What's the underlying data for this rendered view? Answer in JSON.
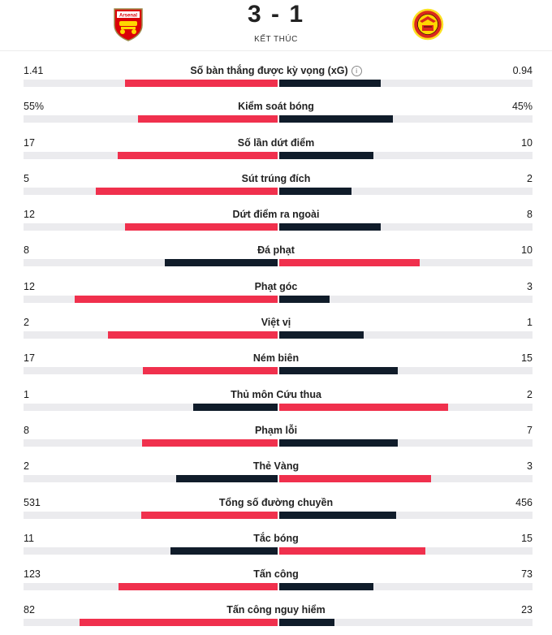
{
  "colors": {
    "winner": "#f0304d",
    "other": "#101c2a",
    "track": "#ebebee"
  },
  "match": {
    "score": "3 - 1",
    "status": "KẾT THÚC",
    "home_crest_icon": "arsenal-crest-icon",
    "away_crest_icon": "manchester-united-crest-icon"
  },
  "stats": [
    {
      "label": "Số bàn thắng được kỳ vọng (xG)",
      "home": "1.41",
      "away": "0.94",
      "home_value": 1.41,
      "away_value": 0.94,
      "info": true
    },
    {
      "label": "Kiểm soát bóng",
      "home": "55%",
      "away": "45%",
      "home_value": 55,
      "away_value": 45
    },
    {
      "label": "Số lần dứt điểm",
      "home": "17",
      "away": "10",
      "home_value": 17,
      "away_value": 10
    },
    {
      "label": "Sút trúng đích",
      "home": "5",
      "away": "2",
      "home_value": 5,
      "away_value": 2
    },
    {
      "label": "Dứt điểm ra ngoài",
      "home": "12",
      "away": "8",
      "home_value": 12,
      "away_value": 8
    },
    {
      "label": "Đá phạt",
      "home": "8",
      "away": "10",
      "home_value": 8,
      "away_value": 10
    },
    {
      "label": "Phạt góc",
      "home": "12",
      "away": "3",
      "home_value": 12,
      "away_value": 3
    },
    {
      "label": "Việt vị",
      "home": "2",
      "away": "1",
      "home_value": 2,
      "away_value": 1
    },
    {
      "label": "Ném biên",
      "home": "17",
      "away": "15",
      "home_value": 17,
      "away_value": 15
    },
    {
      "label": "Thủ môn Cứu thua",
      "home": "1",
      "away": "2",
      "home_value": 1,
      "away_value": 2
    },
    {
      "label": "Phạm lỗi",
      "home": "8",
      "away": "7",
      "home_value": 8,
      "away_value": 7
    },
    {
      "label": "Thẻ Vàng",
      "home": "2",
      "away": "3",
      "home_value": 2,
      "away_value": 3
    },
    {
      "label": "Tổng số đường chuyền",
      "home": "531",
      "away": "456",
      "home_value": 531,
      "away_value": 456
    },
    {
      "label": "Tắc bóng",
      "home": "11",
      "away": "15",
      "home_value": 11,
      "away_value": 15
    },
    {
      "label": "Tấn công",
      "home": "123",
      "away": "73",
      "home_value": 123,
      "away_value": 73
    },
    {
      "label": "Tấn công nguy hiểm",
      "home": "82",
      "away": "23",
      "home_value": 82,
      "away_value": 23
    }
  ]
}
